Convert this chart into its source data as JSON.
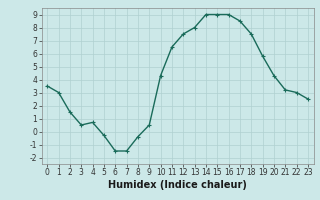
{
  "x": [
    0,
    1,
    2,
    3,
    4,
    5,
    6,
    7,
    8,
    9,
    10,
    11,
    12,
    13,
    14,
    15,
    16,
    17,
    18,
    19,
    20,
    21,
    22,
    23
  ],
  "y": [
    3.5,
    3.0,
    1.5,
    0.5,
    0.7,
    -0.3,
    -1.5,
    -1.5,
    -0.4,
    0.5,
    4.3,
    6.5,
    7.5,
    8.0,
    9.0,
    9.0,
    9.0,
    8.5,
    7.5,
    5.8,
    4.3,
    3.2,
    3.0,
    2.5
  ],
  "line_color": "#1a6b5a",
  "marker": "+",
  "marker_size": 3,
  "line_width": 1.0,
  "xlabel": "Humidex (Indice chaleur)",
  "xlabel_fontsize": 7,
  "xlim": [
    -0.5,
    23.5
  ],
  "ylim": [
    -2.5,
    9.5
  ],
  "yticks": [
    -2,
    -1,
    0,
    1,
    2,
    3,
    4,
    5,
    6,
    7,
    8,
    9
  ],
  "xticks": [
    0,
    1,
    2,
    3,
    4,
    5,
    6,
    7,
    8,
    9,
    10,
    11,
    12,
    13,
    14,
    15,
    16,
    17,
    18,
    19,
    20,
    21,
    22,
    23
  ],
  "bg_color": "#cce8e8",
  "grid_color": "#b0d0d0",
  "tick_fontsize": 5.5,
  "title_fontsize": 7
}
